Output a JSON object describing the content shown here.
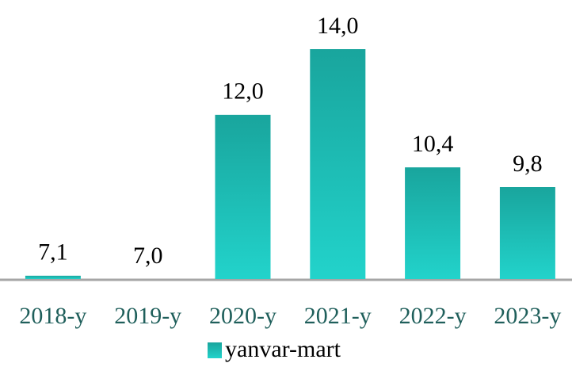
{
  "chart_data": {
    "type": "bar",
    "categories": [
      "2018-y",
      "2019-y",
      "2020-y",
      "2021-y",
      "2022-y",
      "2023-y"
    ],
    "series": [
      {
        "name": "yanvar-mart",
        "color": "#1fbdb5",
        "values": [
          7.1,
          7.0,
          12.0,
          14.0,
          10.4,
          9.8
        ],
        "value_labels": [
          "7,1",
          "7,0",
          "12,0",
          "14,0",
          "10,4",
          "9,8"
        ]
      }
    ],
    "ylim": [
      7,
      14
    ],
    "legend": "bottom"
  }
}
